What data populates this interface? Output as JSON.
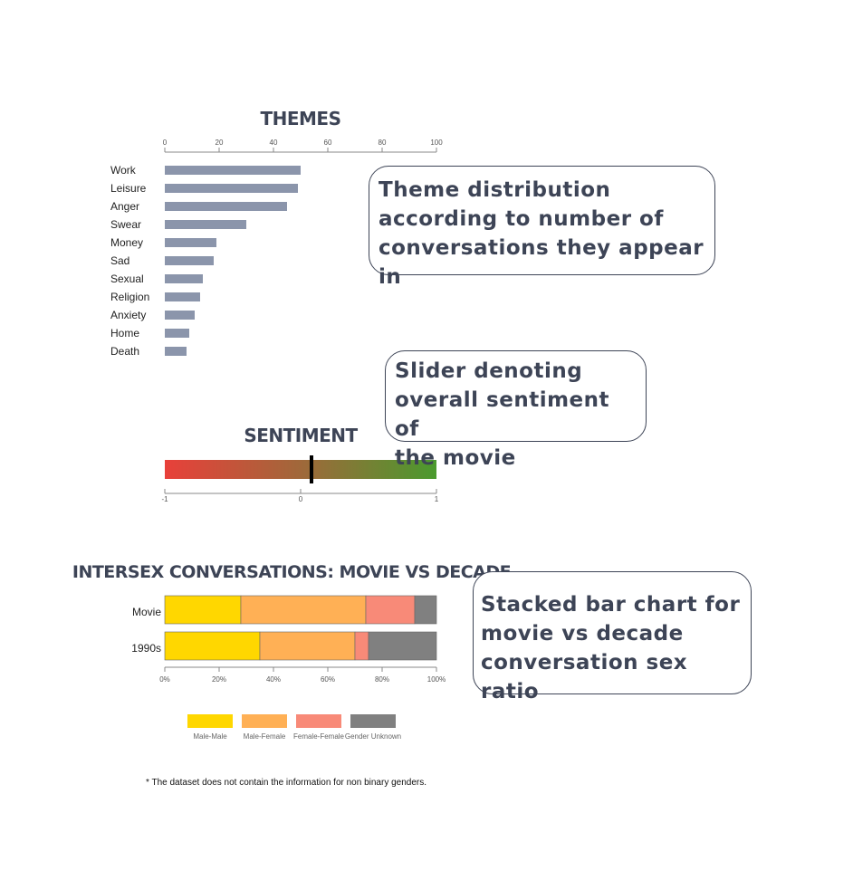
{
  "chart_data": [
    {
      "type": "bar",
      "orientation": "horizontal",
      "title": "THEMES",
      "categories": [
        "Work",
        "Leisure",
        "Anger",
        "Swear",
        "Money",
        "Sad",
        "Sexual",
        "Religion",
        "Anxiety",
        "Home",
        "Death"
      ],
      "values": [
        50,
        49,
        45,
        30,
        19,
        18,
        14,
        13,
        11,
        9,
        8
      ],
      "xlim": [
        0,
        100
      ],
      "xticks": [
        "0",
        "20",
        "40",
        "60",
        "80",
        "100"
      ],
      "bar_color": "#8b95ab",
      "grid": false
    },
    {
      "type": "gauge",
      "title": "SENTIMENT",
      "value": 0.08,
      "range": [
        -1,
        1
      ],
      "ticks": [
        "-1",
        "0",
        "1"
      ],
      "gradient": [
        "#e8403a",
        "#a0683a",
        "#4a9a2e"
      ]
    },
    {
      "type": "bar",
      "orientation": "horizontal",
      "stacked": true,
      "normalized": true,
      "title": "INTERSEX CONVERSATIONS: MOVIE VS DECADE",
      "categories": [
        "Movie",
        "1990s"
      ],
      "xticks": [
        "0%",
        "20%",
        "40%",
        "60%",
        "80%",
        "100%"
      ],
      "series": [
        {
          "name": "Male-Male",
          "color": "#ffd700",
          "values": [
            28,
            35
          ]
        },
        {
          "name": "Male-Female",
          "color": "#ffb055",
          "values": [
            46,
            35
          ]
        },
        {
          "name": "Female-Female",
          "color": "#f88a78",
          "values": [
            18,
            5
          ]
        },
        {
          "name": "Gender Unknown",
          "color": "#808080",
          "values": [
            8,
            25
          ]
        }
      ],
      "legend_position": "bottom"
    }
  ],
  "callouts": {
    "themes": [
      "Theme distribution",
      "according to number of",
      "conversations they appear in"
    ],
    "sentiment": [
      "Slider denoting",
      "overall sentiment of",
      "the movie"
    ],
    "stacked": [
      "Stacked bar chart for",
      "movie vs decade",
      "conversation sex ratio"
    ]
  },
  "footnote": "* The dataset does not contain the information for non binary genders."
}
